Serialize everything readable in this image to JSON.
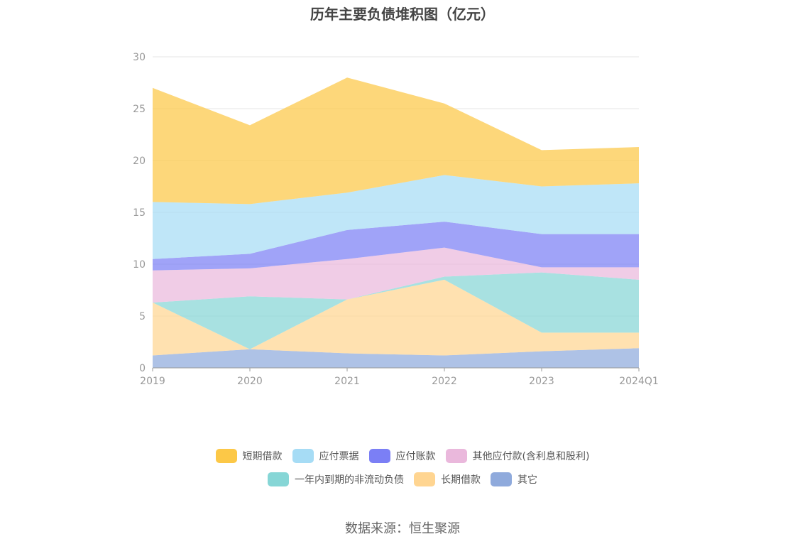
{
  "title": "历年主要负债堆积图（亿元）",
  "source": "数据来源：恒生聚源",
  "chart_data": {
    "type": "area",
    "stacked": true,
    "title": "历年主要负债堆积图（亿元）",
    "categories": [
      "2019",
      "2020",
      "2021",
      "2022",
      "2023",
      "2024Q1"
    ],
    "ylim": [
      0,
      30
    ],
    "yticks": [
      0,
      5,
      10,
      15,
      20,
      25,
      30
    ],
    "grid": true,
    "legend_position": "bottom",
    "series": [
      {
        "name": "其它",
        "color": "#8faadc",
        "values": [
          1.2,
          1.8,
          1.4,
          1.2,
          1.6,
          1.9
        ]
      },
      {
        "name": "长期借款",
        "color": "#ffd591",
        "values": [
          5.1,
          0.0,
          5.2,
          7.3,
          1.8,
          1.5
        ]
      },
      {
        "name": "一年内到期的非流动负债",
        "color": "#86d6d6",
        "values": [
          0.0,
          5.1,
          0.0,
          0.3,
          5.8,
          5.1
        ]
      },
      {
        "name": "其他应付款(含利息和股利)",
        "color": "#eab8dc",
        "values": [
          3.1,
          2.7,
          3.9,
          2.8,
          0.5,
          1.2
        ]
      },
      {
        "name": "应付账款",
        "color": "#7b7ff5",
        "values": [
          1.1,
          1.4,
          2.8,
          2.5,
          3.2,
          3.2
        ]
      },
      {
        "name": "应付票据",
        "color": "#a6dcf5",
        "values": [
          5.5,
          4.8,
          3.6,
          4.5,
          4.6,
          4.9
        ]
      },
      {
        "name": "短期借款",
        "color": "#fcc847",
        "values": [
          11.0,
          7.6,
          11.1,
          6.9,
          3.5,
          3.5
        ]
      }
    ]
  },
  "legend": {
    "row1": [
      {
        "label": "短期借款",
        "color": "#fcc847"
      },
      {
        "label": "应付票据",
        "color": "#a6dcf5"
      },
      {
        "label": "应付账款",
        "color": "#7b7ff5"
      },
      {
        "label": "其他应付款(含利息和股利)",
        "color": "#eab8dc"
      }
    ],
    "row2": [
      {
        "label": "一年内到期的非流动负债",
        "color": "#86d6d6"
      },
      {
        "label": "长期借款",
        "color": "#ffd591"
      },
      {
        "label": "其它",
        "color": "#8faadc"
      }
    ]
  }
}
